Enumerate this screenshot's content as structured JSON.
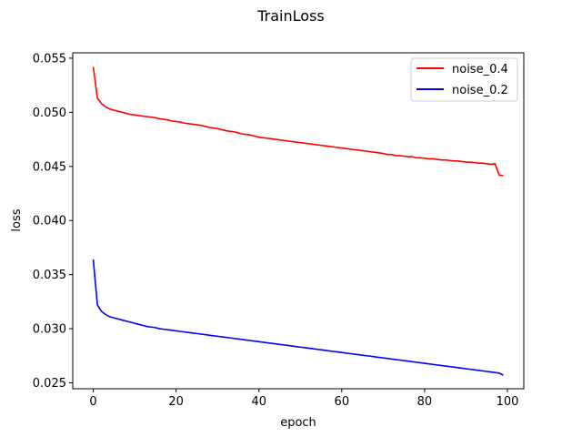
{
  "chart_data": {
    "type": "line",
    "title": "TrainLoss",
    "xlabel": "epoch",
    "ylabel": "loss",
    "xlim": [
      -4.95,
      103.95
    ],
    "ylim": [
      0.02445,
      0.0555
    ],
    "xticks": [
      0,
      20,
      40,
      60,
      80,
      100
    ],
    "xtick_labels": [
      "0",
      "20",
      "40",
      "60",
      "80",
      "100"
    ],
    "yticks": [
      0.025,
      0.03,
      0.035,
      0.04,
      0.045,
      0.05,
      0.055
    ],
    "ytick_labels": [
      "0.025",
      "0.030",
      "0.035",
      "0.040",
      "0.045",
      "0.050",
      "0.055"
    ],
    "grid": false,
    "legend_position": "upper right",
    "x": [
      0,
      1,
      2,
      3,
      4,
      5,
      6,
      7,
      8,
      9,
      10,
      11,
      12,
      13,
      14,
      15,
      16,
      17,
      18,
      19,
      20,
      21,
      22,
      23,
      24,
      25,
      26,
      27,
      28,
      29,
      30,
      31,
      32,
      33,
      34,
      35,
      36,
      37,
      38,
      39,
      40,
      41,
      42,
      43,
      44,
      45,
      46,
      47,
      48,
      49,
      50,
      51,
      52,
      53,
      54,
      55,
      56,
      57,
      58,
      59,
      60,
      61,
      62,
      63,
      64,
      65,
      66,
      67,
      68,
      69,
      70,
      71,
      72,
      73,
      74,
      75,
      76,
      77,
      78,
      79,
      80,
      81,
      82,
      83,
      84,
      85,
      86,
      87,
      88,
      89,
      90,
      91,
      92,
      93,
      94,
      95,
      96,
      97,
      98,
      99
    ],
    "series": [
      {
        "name": "noise_0.4",
        "color": "#ff0000",
        "values": [
          0.0542,
          0.0513,
          0.0508,
          0.0505,
          0.0503,
          0.0502,
          0.0501,
          0.05,
          0.0499,
          0.0498,
          0.04975,
          0.0497,
          0.04965,
          0.0496,
          0.04955,
          0.0495,
          0.0494,
          0.04935,
          0.0493,
          0.0492,
          0.04915,
          0.0491,
          0.049,
          0.04895,
          0.0489,
          0.04885,
          0.0488,
          0.0487,
          0.0486,
          0.04855,
          0.0485,
          0.0484,
          0.0483,
          0.04825,
          0.0482,
          0.0481,
          0.048,
          0.04795,
          0.0479,
          0.0478,
          0.0477,
          0.04765,
          0.0476,
          0.04755,
          0.0475,
          0.04745,
          0.0474,
          0.04735,
          0.0473,
          0.04725,
          0.0472,
          0.04715,
          0.0471,
          0.04705,
          0.047,
          0.04695,
          0.0469,
          0.04685,
          0.0468,
          0.04675,
          0.0467,
          0.04665,
          0.0466,
          0.04655,
          0.0465,
          0.04645,
          0.0464,
          0.04635,
          0.0463,
          0.04625,
          0.0462,
          0.0461,
          0.0461,
          0.046,
          0.046,
          0.04595,
          0.0459,
          0.0459,
          0.0458,
          0.0458,
          0.04575,
          0.0457,
          0.0457,
          0.04565,
          0.0456,
          0.0456,
          0.04555,
          0.0455,
          0.0455,
          0.04545,
          0.0454,
          0.0454,
          0.04535,
          0.0453,
          0.0453,
          0.04525,
          0.0452,
          0.04525,
          0.0442,
          0.04415
        ],
        "label_color": "#000000"
      },
      {
        "name": "noise_0.2",
        "color": "#0000ff",
        "values": [
          0.0364,
          0.0322,
          0.0316,
          0.0313,
          0.0311,
          0.031,
          0.0309,
          0.0308,
          0.0307,
          0.0306,
          0.0305,
          0.0304,
          0.0303,
          0.0302,
          0.03015,
          0.0301,
          0.03,
          0.02995,
          0.0299,
          0.02985,
          0.0298,
          0.02975,
          0.0297,
          0.02965,
          0.0296,
          0.02955,
          0.0295,
          0.02945,
          0.0294,
          0.02935,
          0.0293,
          0.02925,
          0.0292,
          0.02915,
          0.0291,
          0.02905,
          0.029,
          0.02895,
          0.0289,
          0.02885,
          0.0288,
          0.02875,
          0.0287,
          0.02865,
          0.0286,
          0.02855,
          0.0285,
          0.02845,
          0.0284,
          0.02835,
          0.0283,
          0.02825,
          0.0282,
          0.02815,
          0.0281,
          0.02805,
          0.028,
          0.02795,
          0.0279,
          0.02785,
          0.0278,
          0.02775,
          0.0277,
          0.02765,
          0.0276,
          0.02755,
          0.0275,
          0.02745,
          0.0274,
          0.02735,
          0.0273,
          0.02725,
          0.0272,
          0.02715,
          0.0271,
          0.02705,
          0.027,
          0.02695,
          0.0269,
          0.02685,
          0.0268,
          0.02675,
          0.0267,
          0.02665,
          0.0266,
          0.02655,
          0.0265,
          0.02645,
          0.0264,
          0.02635,
          0.0263,
          0.02625,
          0.0262,
          0.02615,
          0.0261,
          0.02605,
          0.026,
          0.02595,
          0.0259,
          0.0257
        ]
      }
    ]
  }
}
